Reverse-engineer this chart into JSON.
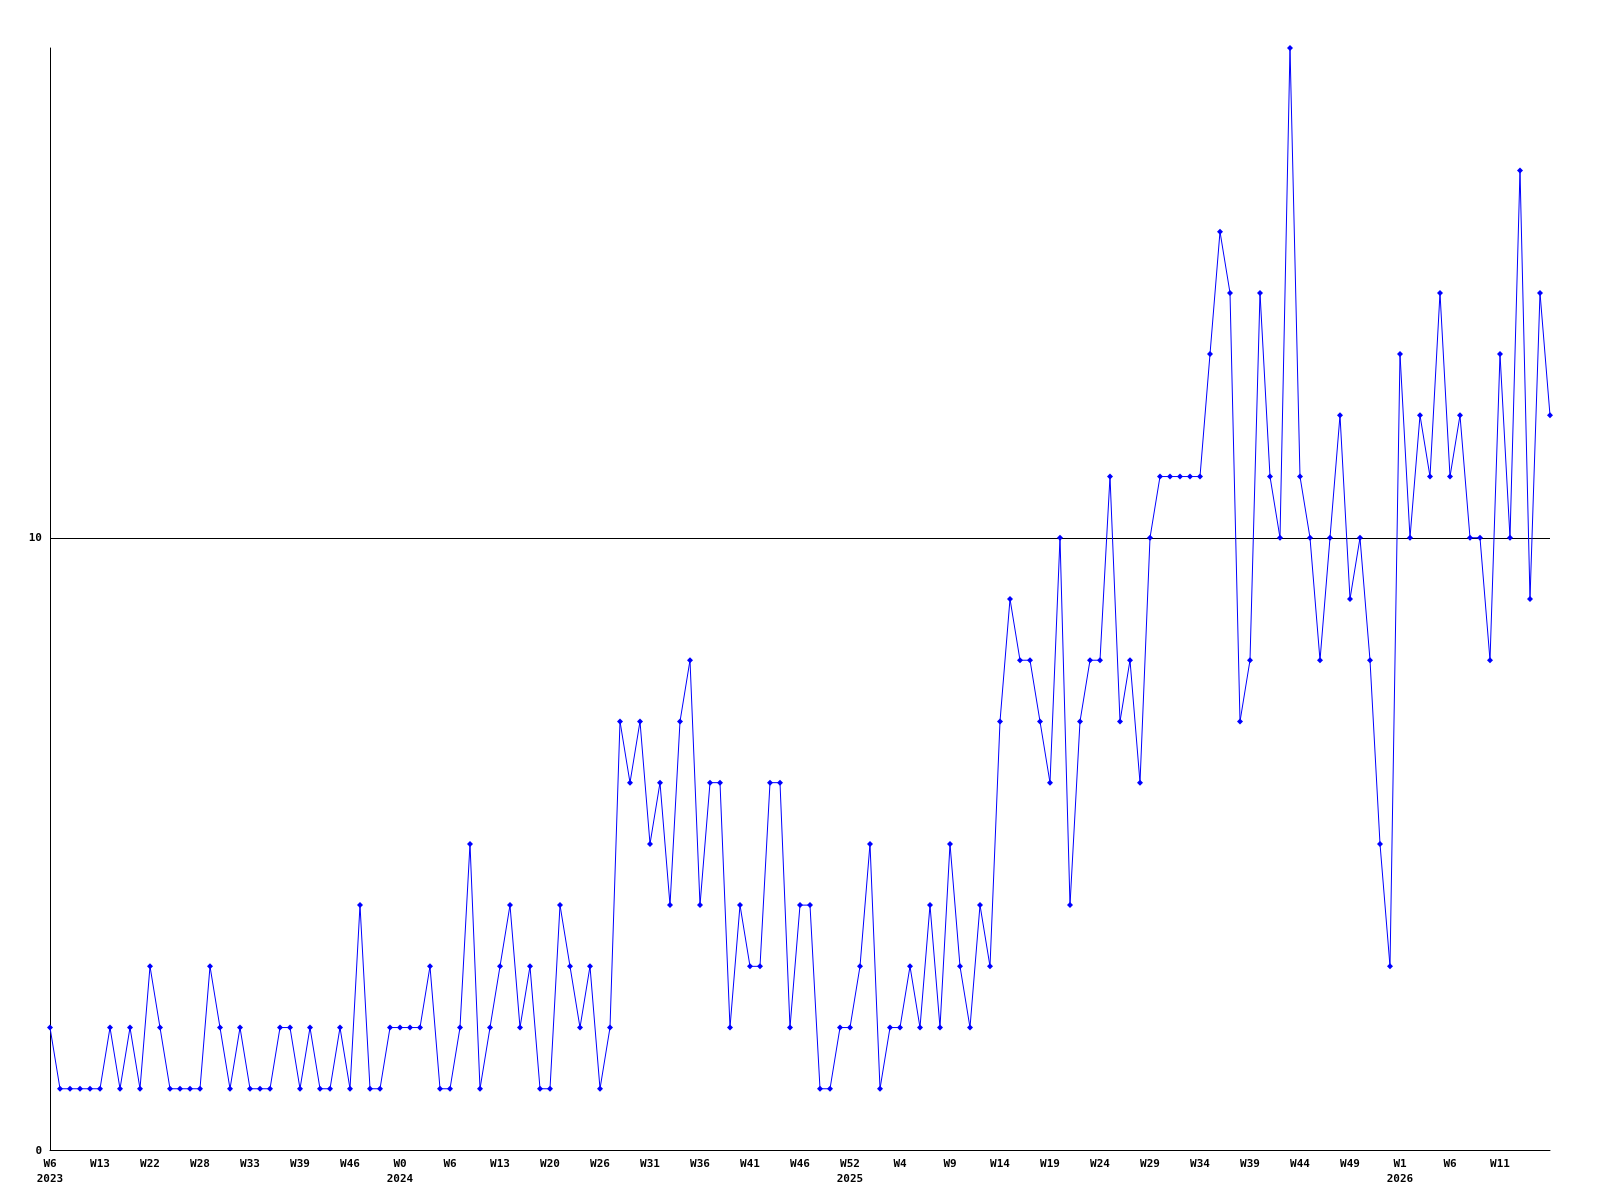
{
  "chart_data": {
    "type": "line",
    "categories": [
      "W6\n2023",
      null,
      null,
      null,
      null,
      "W13",
      null,
      null,
      null,
      null,
      "W22",
      null,
      null,
      null,
      null,
      "W28",
      null,
      null,
      null,
      null,
      "W33",
      null,
      null,
      null,
      null,
      "W39",
      null,
      null,
      null,
      null,
      "W46",
      null,
      null,
      null,
      null,
      "W0\n2024",
      null,
      null,
      null,
      null,
      "W6",
      null,
      null,
      null,
      null,
      "W13",
      null,
      null,
      null,
      null,
      "W20",
      null,
      null,
      null,
      null,
      "W26",
      null,
      null,
      null,
      null,
      "W31",
      null,
      null,
      null,
      null,
      "W36",
      null,
      null,
      null,
      null,
      "W41",
      null,
      null,
      null,
      null,
      "W46",
      null,
      null,
      null,
      null,
      "W52\n2025",
      null,
      null,
      null,
      null,
      "W4",
      null,
      null,
      null,
      null,
      "W9",
      null,
      null,
      null,
      null,
      "W14",
      null,
      null,
      null,
      null,
      "W19",
      null,
      null,
      null,
      null,
      "W24",
      null,
      null,
      null,
      null,
      "W29",
      null,
      null,
      null,
      null,
      "W34",
      null,
      null,
      null,
      null,
      "W39",
      null,
      null,
      null,
      null,
      "W44",
      null,
      null,
      null,
      null,
      "W49",
      null,
      null,
      null,
      null,
      "W1\n2026",
      null,
      null,
      null,
      null,
      "W6",
      null,
      null,
      null,
      null,
      "W11",
      null,
      null,
      null,
      null,
      null
    ],
    "series": [
      {
        "color": "#0000ff",
        "values": [
          2,
          1,
          1,
          1,
          1,
          1,
          2,
          1,
          2,
          1,
          3,
          2,
          1,
          1,
          1,
          1,
          3,
          2,
          1,
          2,
          1,
          1,
          1,
          2,
          2,
          1,
          2,
          1,
          1,
          2,
          1,
          4,
          1,
          1,
          2,
          2,
          2,
          2,
          3,
          1,
          1,
          2,
          5,
          1,
          2,
          3,
          4,
          2,
          3,
          1,
          1,
          4,
          3,
          2,
          3,
          1,
          2,
          7,
          6,
          7,
          5,
          6,
          4,
          7,
          8,
          4,
          6,
          6,
          2,
          4,
          3,
          3,
          6,
          6,
          2,
          4,
          4,
          1,
          1,
          2,
          2,
          3,
          5,
          1,
          2,
          2,
          3,
          2,
          4,
          2,
          5,
          3,
          2,
          4,
          3,
          7,
          9,
          8,
          8,
          7,
          6,
          10,
          4,
          7,
          8,
          8,
          11,
          7,
          8,
          6,
          10,
          11,
          11,
          11,
          11,
          11,
          13,
          15,
          14,
          7,
          8,
          14,
          11,
          10,
          18,
          11,
          10,
          8,
          10,
          12,
          9,
          10,
          8,
          5,
          3,
          13,
          10,
          12,
          11,
          14,
          11,
          12,
          10,
          10,
          8,
          13,
          10,
          16,
          9,
          14,
          12
        ]
      }
    ],
    "ylim": [
      0,
      18
    ],
    "yticks": [
      0,
      10
    ],
    "grid": "y",
    "marker": "diamond",
    "line_style": "solid"
  }
}
